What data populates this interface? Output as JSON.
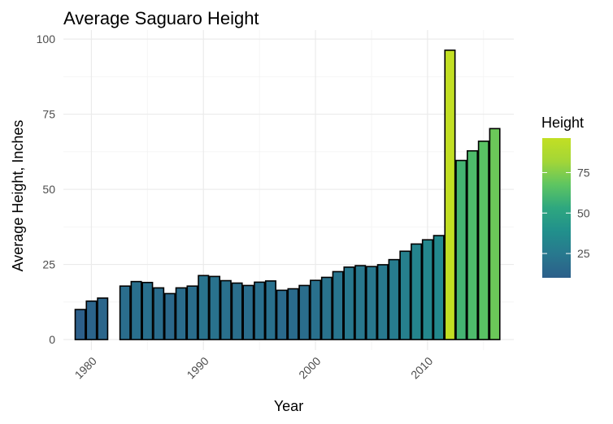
{
  "chart_data": {
    "type": "bar",
    "title": "Average Saguaro Height",
    "xlabel": "Year",
    "ylabel": "Average Height, Inches",
    "x": [
      1979,
      1980,
      1981,
      1983,
      1984,
      1985,
      1986,
      1987,
      1988,
      1989,
      1990,
      1991,
      1992,
      1993,
      1994,
      1995,
      1996,
      1997,
      1998,
      1999,
      2000,
      2001,
      2002,
      2003,
      2004,
      2005,
      2006,
      2007,
      2008,
      2009,
      2010,
      2011,
      2012,
      2013,
      2014,
      2015,
      2016
    ],
    "values": [
      10,
      12.8,
      13.8,
      17.8,
      19.3,
      19,
      17.2,
      15.3,
      17.2,
      17.8,
      21.3,
      21,
      19.6,
      18.8,
      18,
      19.1,
      19.5,
      16.4,
      16.9,
      18,
      19.7,
      20.7,
      22.6,
      24.1,
      24.6,
      24.3,
      24.9,
      26.6,
      29.4,
      31.8,
      33.2,
      34.6,
      96.3,
      59.6,
      62.8,
      66,
      70.2
    ],
    "xlim": [
      1977.5,
      2017.7
    ],
    "ylim": [
      -3.5,
      103
    ],
    "x_ticks": [
      1980,
      1990,
      2000,
      2010
    ],
    "x_tick_labels": [
      "1980",
      "1990",
      "2000",
      "2010"
    ],
    "y_ticks": [
      0,
      25,
      50,
      75,
      100
    ],
    "y_tick_labels": [
      "0",
      "25",
      "50",
      "75",
      "100"
    ],
    "grid": true,
    "legend": {
      "title": "Height",
      "placement": "right",
      "type": "colorbar",
      "range": [
        10,
        96.3
      ],
      "ticks": [
        25,
        50,
        75
      ],
      "tick_labels": [
        "25",
        "50",
        "75"
      ],
      "colors": [
        "#2c5f8a",
        "#28788e",
        "#21908c",
        "#2ea77f",
        "#5ec561",
        "#a3d637",
        "#c2df23"
      ]
    }
  }
}
